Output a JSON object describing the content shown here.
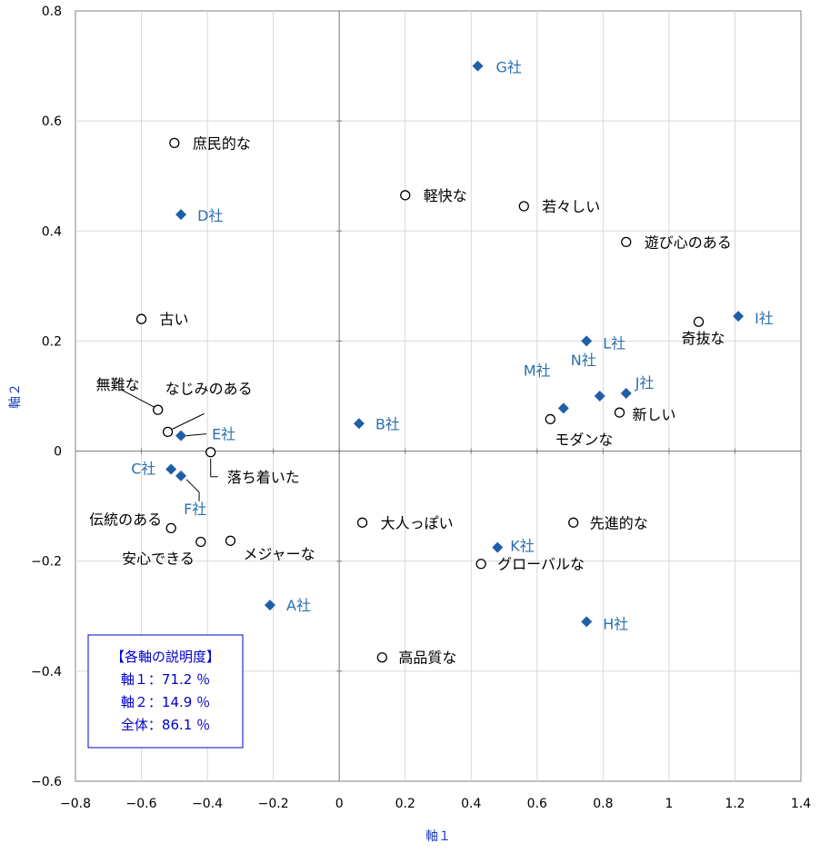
{
  "chart_data": {
    "type": "scatter",
    "xlabel": "軸１",
    "ylabel": "軸２",
    "xlim": [
      -0.8,
      1.4
    ],
    "ylim": [
      -0.6,
      0.8
    ],
    "xticks": [
      "−0.8",
      "−0.6",
      "−0.4",
      "−0.2",
      "0",
      "0.2",
      "0.4",
      "0.6",
      "0.8",
      "1",
      "1.2",
      "1.4"
    ],
    "yticks": [
      "0.8",
      "0.6",
      "0.4",
      "0.2",
      "0",
      "−0.2",
      "−0.4",
      "−0.6"
    ],
    "grid": true,
    "colors": {
      "attribute": "#000000",
      "company": "#1f5fa8",
      "company_text": "#2a6fae",
      "box": "#0000cc"
    },
    "series": [
      {
        "marker": "open-circle",
        "points": [
          {
            "label": "庶民的な",
            "x": -0.5,
            "y": 0.56
          },
          {
            "label": "軽快な",
            "x": 0.2,
            "y": 0.465
          },
          {
            "label": "若々しい",
            "x": 0.56,
            "y": 0.445
          },
          {
            "label": "遊び心のある",
            "x": 0.87,
            "y": 0.38
          },
          {
            "label": "古い",
            "x": -0.6,
            "y": 0.24
          },
          {
            "label": "奇抜な",
            "x": 1.09,
            "y": 0.235
          },
          {
            "label": "無難な",
            "x": -0.55,
            "y": 0.075
          },
          {
            "label": "なじみのある",
            "x": -0.52,
            "y": 0.035
          },
          {
            "label": "新しい",
            "x": 0.85,
            "y": 0.07
          },
          {
            "label": "モダンな",
            "x": 0.64,
            "y": 0.058
          },
          {
            "label": "落ち着いた",
            "x": -0.39,
            "y": -0.002
          },
          {
            "label": "伝統のある",
            "x": -0.51,
            "y": -0.14
          },
          {
            "label": "安心できる",
            "x": -0.42,
            "y": -0.165
          },
          {
            "label": "メジャーな",
            "x": -0.33,
            "y": -0.163
          },
          {
            "label": "大人っぽい",
            "x": 0.07,
            "y": -0.13
          },
          {
            "label": "先進的な",
            "x": 0.71,
            "y": -0.13
          },
          {
            "label": "グローバルな",
            "x": 0.43,
            "y": -0.205
          },
          {
            "label": "高品質な",
            "x": 0.13,
            "y": -0.375
          }
        ]
      },
      {
        "marker": "filled-diamond",
        "points": [
          {
            "label": "G社",
            "x": 0.42,
            "y": 0.7
          },
          {
            "label": "D社",
            "x": -0.48,
            "y": 0.43
          },
          {
            "label": "I社",
            "x": 1.21,
            "y": 0.245
          },
          {
            "label": "L社",
            "x": 0.75,
            "y": 0.2
          },
          {
            "label": "J社",
            "x": 0.87,
            "y": 0.105
          },
          {
            "label": "N社",
            "x": 0.79,
            "y": 0.1
          },
          {
            "label": "M社",
            "x": 0.68,
            "y": 0.078
          },
          {
            "label": "B社",
            "x": 0.06,
            "y": 0.05
          },
          {
            "label": "E社",
            "x": -0.48,
            "y": 0.028
          },
          {
            "label": "C社",
            "x": -0.51,
            "y": -0.033
          },
          {
            "label": "F社",
            "x": -0.48,
            "y": -0.045
          },
          {
            "label": "K社",
            "x": 0.48,
            "y": -0.175
          },
          {
            "label": "A社",
            "x": -0.21,
            "y": -0.28
          },
          {
            "label": "H社",
            "x": 0.75,
            "y": -0.31
          }
        ]
      }
    ],
    "explained_box": {
      "title": "【各軸の説明度】",
      "lines": [
        "軸１：71.2 ％",
        "軸２：14.9 ％",
        "全体：86.1 ％"
      ]
    }
  }
}
